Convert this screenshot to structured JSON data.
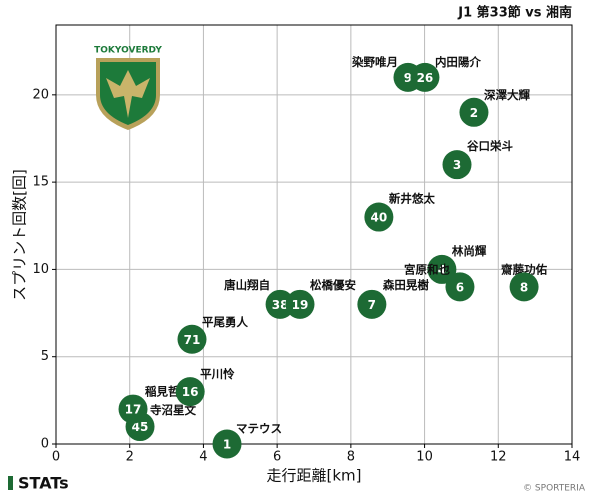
{
  "chart_data": {
    "type": "scatter",
    "title": "J1 第33節 vs 湘南",
    "xlabel": "走行距離[km]",
    "ylabel": "スプリント回数[回]",
    "xlim": [
      0,
      14
    ],
    "ylim": [
      0,
      24
    ],
    "xticks": [
      0,
      2,
      4,
      6,
      8,
      10,
      12,
      14
    ],
    "yticks": [
      0,
      5,
      10,
      15,
      20
    ],
    "grid": true,
    "color": "#1d6a34",
    "numbers": [
      1,
      45,
      17,
      16,
      71,
      38,
      19,
      7,
      4,
      6,
      8,
      40,
      3,
      2,
      9,
      26
    ],
    "names": [
      "マテウス",
      "寺沼星文",
      "稲見哲行",
      "平川怜",
      "平尾勇人",
      "唐山翔自",
      "松橋優安",
      "森田晃樹",
      "林尚輝",
      "宮原和也",
      "齋藤功佑",
      "新井悠太",
      "谷口栄斗",
      "深澤大輝",
      "染野唯月",
      "内田陽介"
    ],
    "x": [
      4.64,
      2.28,
      2.09,
      3.64,
      3.69,
      6.08,
      6.62,
      8.57,
      10.47,
      10.96,
      12.7,
      8.76,
      10.88,
      11.34,
      9.55,
      10.01
    ],
    "values": [
      0,
      1,
      2,
      3,
      6,
      8,
      8,
      8,
      10,
      9,
      9,
      13,
      16,
      19,
      21,
      21
    ],
    "logo_text": "TOKYOVERDY",
    "brand": "STATs",
    "credit": "© SPORTERIA"
  }
}
